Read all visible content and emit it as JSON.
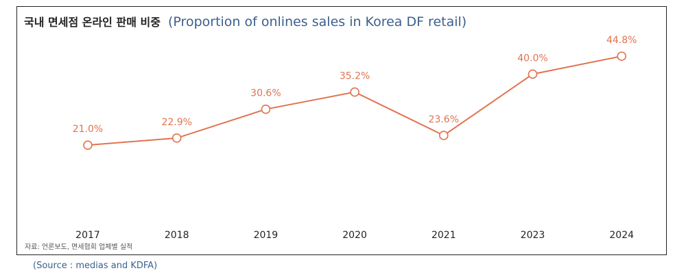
{
  "title_ko": "국내 면세점 온라인 판매 비중",
  "title_en": "(Proportion of onlines sales in Korea DF retail)",
  "source_ko": "자료: 언론보도, 면세협회 업체별 실적",
  "caption": "(Source : medias and KDFA)",
  "colors": {
    "line": "#e0734f",
    "label": "#e0734f",
    "title_en": "#3b5f8c"
  },
  "chart_data": {
    "type": "line",
    "title": "국내 면세점 온라인 판매 비중",
    "categories": [
      "2017",
      "2018",
      "2019",
      "2020",
      "2021",
      "2023",
      "2024"
    ],
    "values": [
      21.0,
      22.9,
      30.6,
      35.2,
      23.6,
      40.0,
      44.8
    ],
    "data_labels": [
      "21.0%",
      "22.9%",
      "30.6%",
      "35.2%",
      "23.6%",
      "40.0%",
      "44.8%"
    ],
    "unit": "%",
    "grid": false,
    "legend": "none"
  }
}
